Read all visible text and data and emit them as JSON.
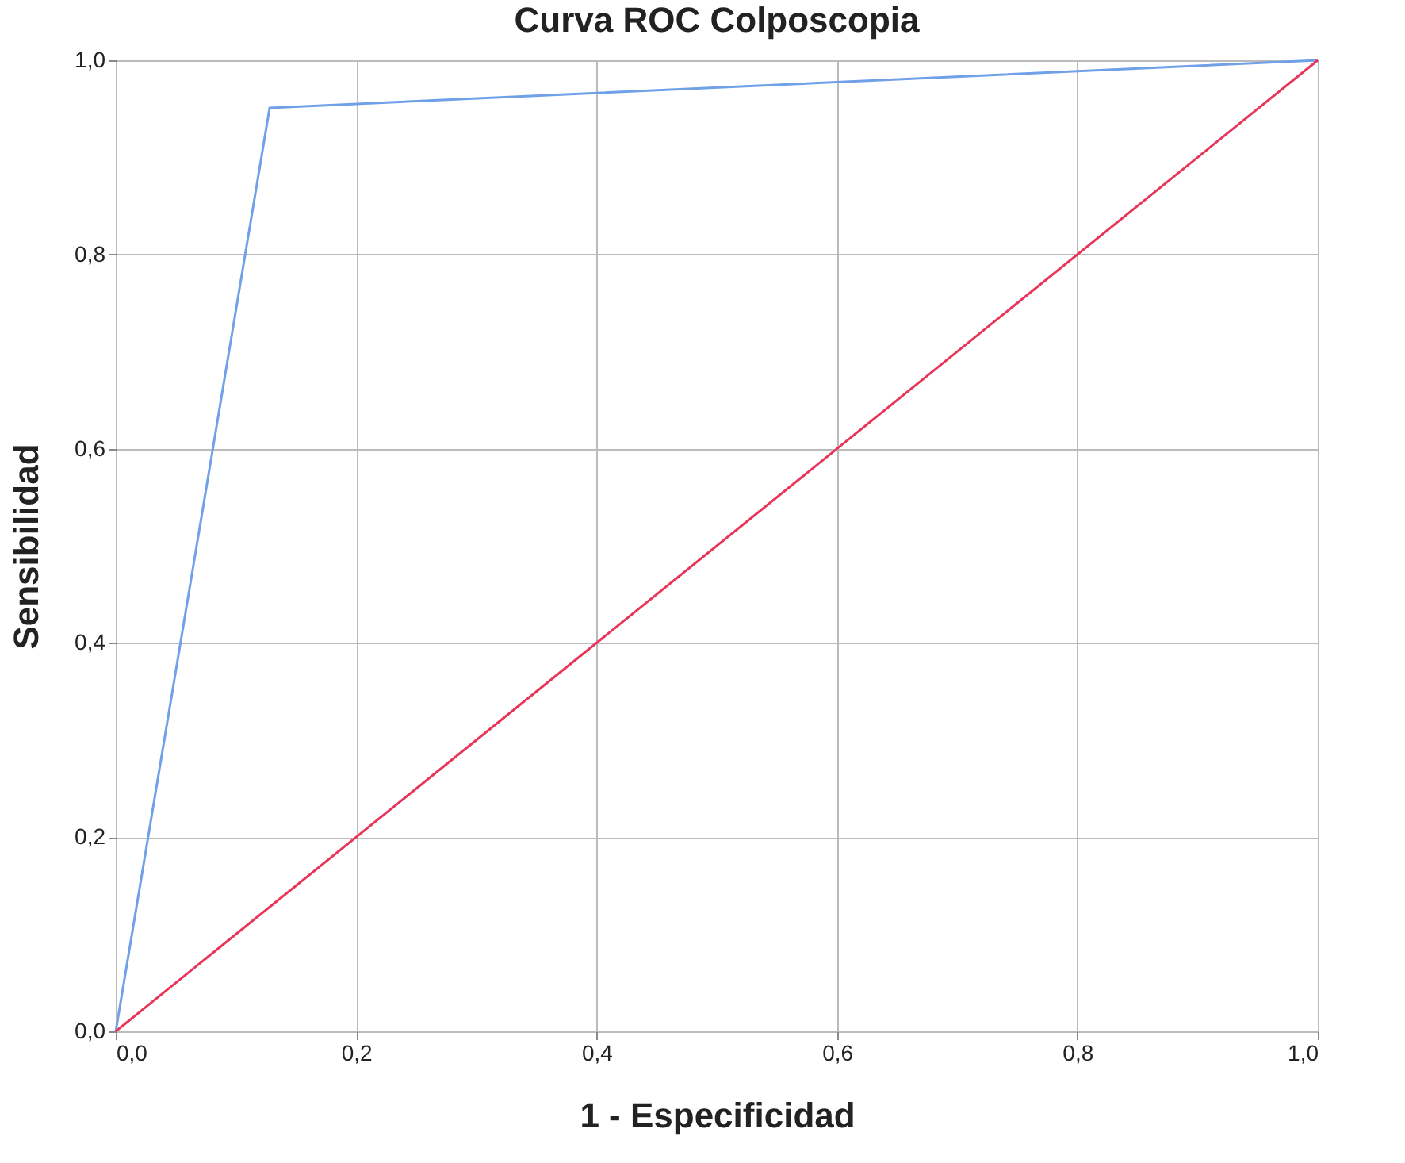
{
  "chart_data": {
    "type": "line",
    "title": "Curva ROC Colposcopia",
    "xlabel": "1 - Especificidad",
    "ylabel": "Sensibilidad",
    "xlim": [
      0,
      1
    ],
    "ylim": [
      0,
      1
    ],
    "xticks": [
      {
        "value": 0,
        "label": "0,0"
      },
      {
        "value": 0.2,
        "label": "0,2"
      },
      {
        "value": 0.4,
        "label": "0,4"
      },
      {
        "value": 0.6,
        "label": "0,6"
      },
      {
        "value": 0.8,
        "label": "0,8"
      },
      {
        "value": 1,
        "label": "1,0"
      }
    ],
    "yticks": [
      {
        "value": 0,
        "label": "0,0"
      },
      {
        "value": 0.2,
        "label": "0,2"
      },
      {
        "value": 0.4,
        "label": "0,4"
      },
      {
        "value": 0.6,
        "label": "0,6"
      },
      {
        "value": 0.8,
        "label": "0,8"
      },
      {
        "value": 1,
        "label": "1,0"
      }
    ],
    "grid": true,
    "legend": false,
    "marker": "none",
    "line_style": "solid",
    "series": [
      {
        "color": "#70a0e8",
        "x": [
          0,
          0.128,
          1
        ],
        "values": [
          0,
          0.951,
          1
        ]
      },
      {
        "color": "#e8365a",
        "x": [
          0,
          1
        ],
        "values": [
          0,
          1
        ]
      }
    ]
  }
}
